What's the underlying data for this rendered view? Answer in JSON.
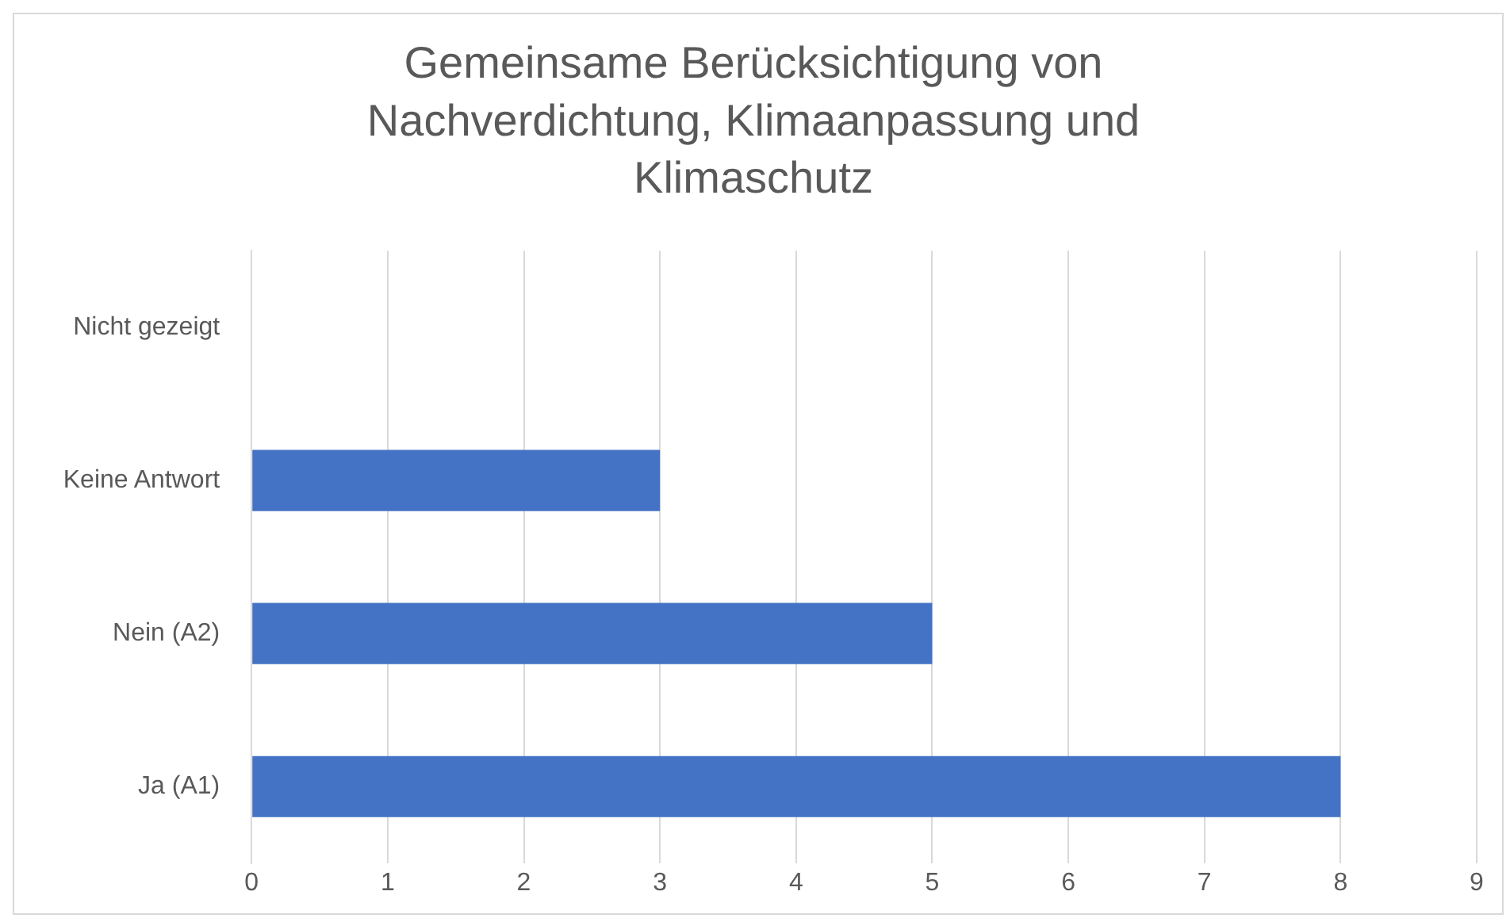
{
  "chart_data": {
    "type": "bar",
    "orientation": "horizontal",
    "title": "Gemeinsame Berücksichtigung von Nachverdichtung, Klimaanpassung und Klimaschutz",
    "categories": [
      "Nicht gezeigt",
      "Keine Antwort",
      "Nein (A2)",
      "Ja (A1)"
    ],
    "values": [
      0,
      3,
      5,
      8
    ],
    "color": "#4472c4",
    "xlim": [
      0,
      9
    ],
    "xticks": [
      0,
      1,
      2,
      3,
      4,
      5,
      6,
      7,
      8,
      9
    ],
    "grid": "x",
    "legend": false
  }
}
